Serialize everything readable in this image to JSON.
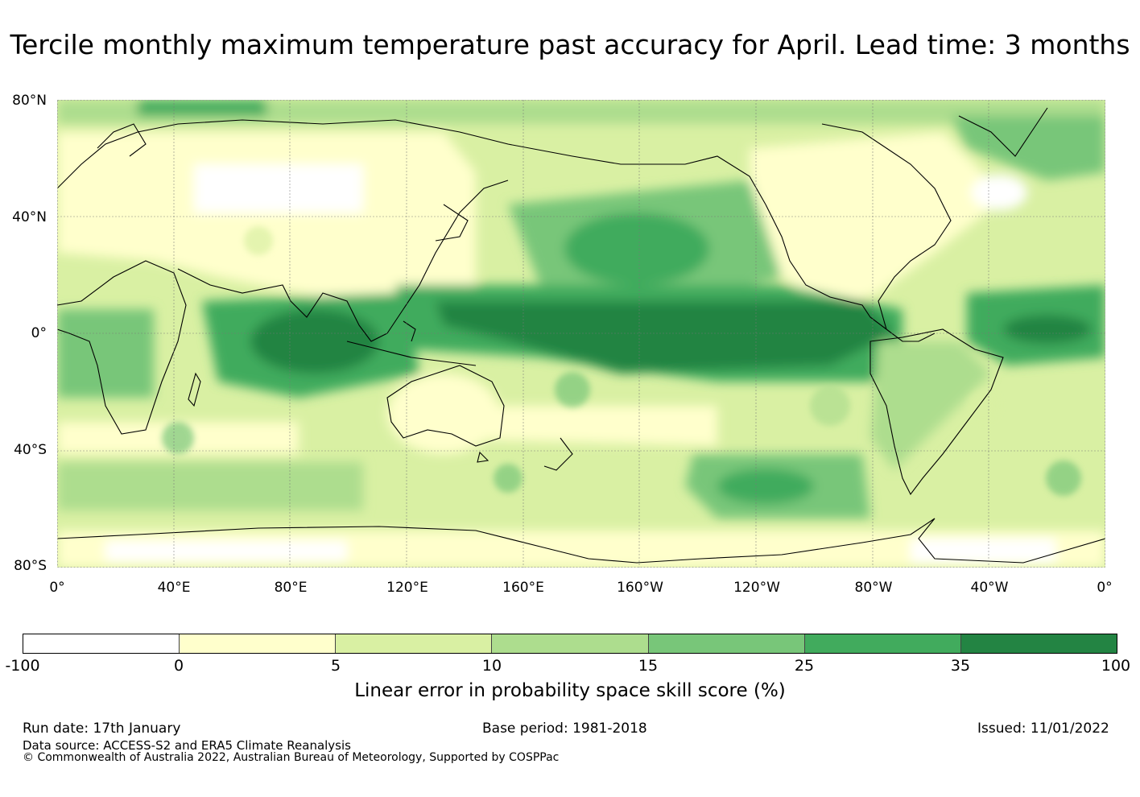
{
  "title": "Tercile monthly maximum temperature past accuracy for April. Lead time: 3 months",
  "map": {
    "lat_labels": [
      "80°N",
      "40°N",
      "0°",
      "40°S",
      "80°S"
    ],
    "lon_labels": [
      "0°",
      "40°E",
      "80°E",
      "120°E",
      "160°E",
      "160°W",
      "120°W",
      "80°W",
      "40°W",
      "0°"
    ],
    "land_color": "#000000"
  },
  "colorbar": {
    "ticks": [
      "-100",
      "0",
      "5",
      "10",
      "15",
      "25",
      "35",
      "100"
    ],
    "colors": [
      "#ffffff",
      "#ffffcc",
      "#d9f0a3",
      "#addd8e",
      "#78c679",
      "#41ab5d",
      "#238443"
    ],
    "label": "Linear error in probability space skill score (%)"
  },
  "footer": {
    "run_date": "Run date: 17th January",
    "base_period": "Base period: 1981-2018",
    "issued": "Issued: 11/01/2022",
    "data_source": "Data source: ACCESS-S2 and ERA5 Climate Reanalysis",
    "copyright": "© Commonwealth of Australia 2022, Australian Bureau of Meteorology, Supported by COSPPac"
  }
}
